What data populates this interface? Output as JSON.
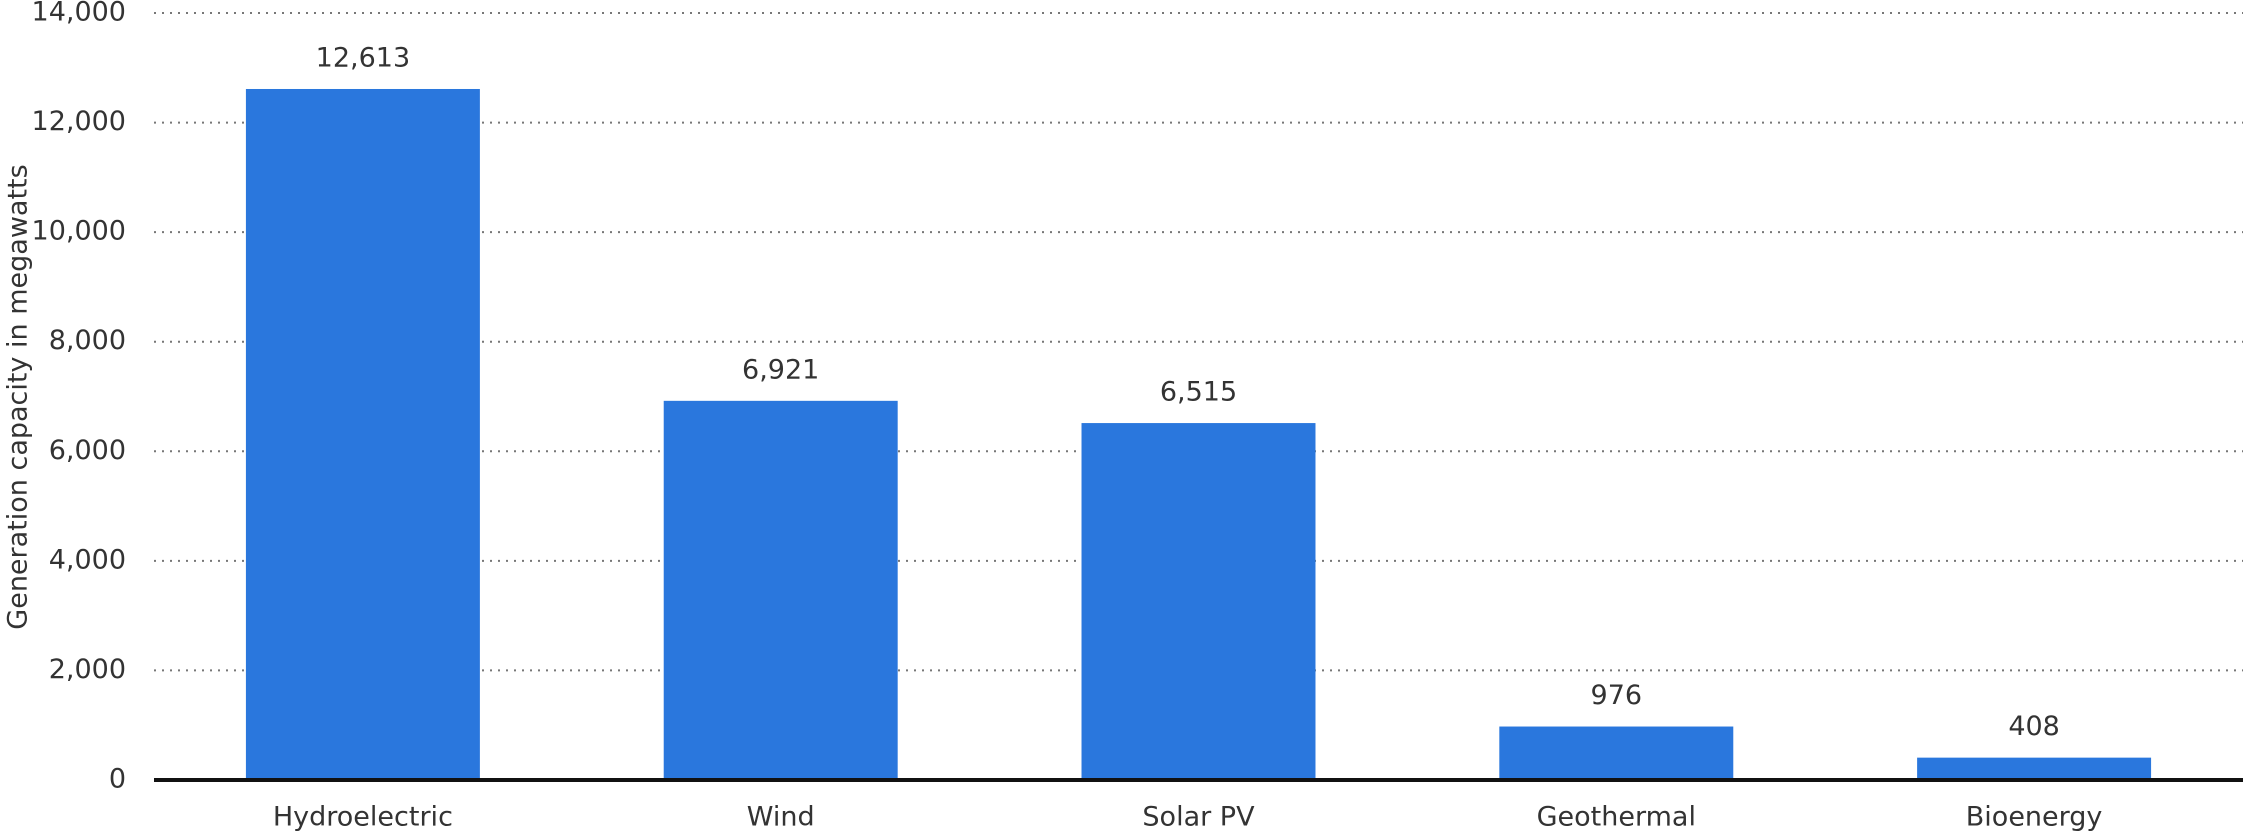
{
  "chart_data": {
    "type": "bar",
    "y_axis_label": "Generation capacity in megawatts",
    "categories": [
      "Hydroelectric",
      "Wind",
      "Solar PV",
      "Geothermal",
      "Bioenergy"
    ],
    "values": [
      12613,
      6921,
      6515,
      976,
      408
    ],
    "value_labels": [
      "12,613",
      "6,921",
      "6,515",
      "976",
      "408"
    ],
    "color": "#2a77dd",
    "ylim": [
      0,
      14000
    ],
    "yticks": [
      0,
      {
        "value": 2000,
        "label": "2,000"
      },
      {
        "value": 4000,
        "label": "4,000"
      },
      {
        "value": 6000,
        "label": "6,000"
      },
      {
        "value": 8000,
        "label": "8,000"
      },
      {
        "value": 10000,
        "label": "10,000"
      },
      {
        "value": 12000,
        "label": "12,000"
      },
      {
        "value": 14000,
        "label": "14,000"
      }
    ],
    "grid": true
  }
}
